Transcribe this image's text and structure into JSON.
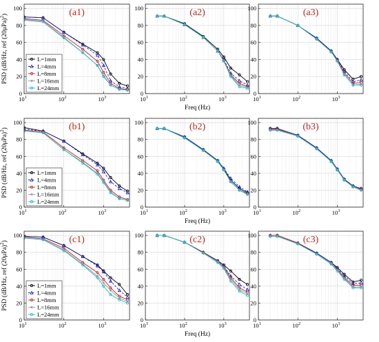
{
  "figure": {
    "ylabel_prefix": "PSD (dB/Hz, ref (20μPa)",
    "ylabel_sup": "2",
    "ylabel_suffix": ")",
    "xlabel": "Freq (Hz)"
  },
  "axes": {
    "x_scale": "log",
    "xlim": [
      10,
      4500
    ],
    "ylim": [
      0,
      105
    ],
    "x_ticks": [
      10,
      100,
      1000
    ],
    "x_tick_labels": [
      {
        "base": "10",
        "exp": "1"
      },
      {
        "base": "10",
        "exp": "2"
      },
      {
        "base": "10",
        "exp": "3"
      }
    ],
    "y_ticks": [
      0,
      20,
      40,
      60,
      80,
      100
    ],
    "y_tick_labels": [
      "0",
      "20",
      "40",
      "60",
      "80",
      "100"
    ],
    "grid": true
  },
  "legend": {
    "position": "lower-left",
    "entries": [
      "L=1mm",
      "L=4mm",
      "L=8mm",
      "L=16mm",
      "L=24mm"
    ]
  },
  "series_style": [
    {
      "color": "#000000",
      "marker": "circle"
    },
    {
      "color": "#1f1fd6",
      "marker": "triangle",
      "dash": "3,2"
    },
    {
      "color": "#c42020",
      "marker": "circle"
    },
    {
      "color": "#999999",
      "marker": "star"
    },
    {
      "color": "#1fb8c8",
      "marker": "circle"
    }
  ],
  "chart_data": [
    {
      "type": "line",
      "panel": "(a1)",
      "x": [
        10,
        30,
        100,
        300,
        700,
        1000,
        1500,
        2500,
        4000
      ],
      "series": [
        {
          "name": "L=1mm",
          "values": [
            90,
            89,
            72,
            58,
            48,
            40,
            23,
            12,
            9
          ]
        },
        {
          "name": "L=4mm",
          "values": [
            90,
            89,
            72,
            57,
            45,
            33,
            15,
            8,
            6
          ]
        },
        {
          "name": "L=8mm",
          "values": [
            88,
            86,
            68,
            52,
            38,
            25,
            12,
            6,
            5
          ]
        },
        {
          "name": "L=16mm",
          "values": [
            86,
            84,
            65,
            48,
            33,
            21,
            10,
            5,
            4
          ]
        },
        {
          "name": "L=24mm",
          "values": [
            87,
            85,
            66,
            48,
            33,
            20,
            10,
            5,
            4
          ]
        }
      ]
    },
    {
      "type": "line",
      "panel": "(a2)",
      "x": [
        20,
        30,
        100,
        300,
        700,
        1000,
        1500,
        2500,
        4000
      ],
      "series": [
        {
          "name": "L=1mm",
          "values": [
            91,
            91,
            82,
            67,
            52,
            43,
            30,
            22,
            14
          ]
        },
        {
          "name": "L=4mm",
          "values": [
            91,
            91,
            81,
            66,
            50,
            40,
            24,
            15,
            10
          ]
        },
        {
          "name": "L=8mm",
          "values": [
            91,
            91,
            81,
            66,
            50,
            39,
            22,
            12,
            8
          ]
        },
        {
          "name": "L=16mm",
          "values": [
            91,
            91,
            81,
            66,
            50,
            38,
            21,
            10,
            7
          ]
        },
        {
          "name": "L=24mm",
          "values": [
            91,
            91,
            81,
            66,
            50,
            38,
            20,
            8,
            6
          ]
        }
      ]
    },
    {
      "type": "line",
      "panel": "(a3)",
      "x": [
        20,
        30,
        100,
        300,
        700,
        1000,
        1500,
        2500,
        4000
      ],
      "series": [
        {
          "name": "L=1mm",
          "values": [
            91,
            91,
            80,
            65,
            50,
            40,
            28,
            17,
            20
          ]
        },
        {
          "name": "L=4mm",
          "values": [
            91,
            91,
            80,
            65,
            50,
            40,
            26,
            14,
            16
          ]
        },
        {
          "name": "L=8mm",
          "values": [
            91,
            91,
            80,
            64,
            49,
            39,
            24,
            12,
            13
          ]
        },
        {
          "name": "L=16mm",
          "values": [
            91,
            91,
            80,
            64,
            49,
            38,
            22,
            10,
            11
          ]
        },
        {
          "name": "L=24mm",
          "values": [
            91,
            91,
            80,
            64,
            49,
            38,
            22,
            10,
            10
          ]
        }
      ]
    },
    {
      "type": "line",
      "panel": "(b1)",
      "x": [
        10,
        30,
        100,
        300,
        700,
        1000,
        1500,
        2500,
        4000
      ],
      "series": [
        {
          "name": "L=1mm",
          "values": [
            94,
            90,
            78,
            63,
            52,
            46,
            35,
            25,
            19
          ]
        },
        {
          "name": "L=4mm",
          "values": [
            92,
            90,
            78,
            62,
            50,
            42,
            30,
            22,
            17
          ]
        },
        {
          "name": "L=8mm",
          "values": [
            91,
            89,
            70,
            55,
            43,
            32,
            20,
            12,
            9
          ]
        },
        {
          "name": "L=16mm",
          "values": [
            90,
            88,
            68,
            53,
            40,
            30,
            18,
            10,
            8
          ]
        },
        {
          "name": "L=24mm",
          "values": [
            90,
            88,
            68,
            52,
            39,
            29,
            17,
            10,
            8
          ]
        }
      ]
    },
    {
      "type": "line",
      "panel": "(b2)",
      "x": [
        20,
        30,
        100,
        300,
        700,
        1000,
        1500,
        2500,
        4000
      ],
      "series": [
        {
          "name": "L=1mm",
          "values": [
            93,
            93,
            83,
            68,
            55,
            45,
            32,
            22,
            17
          ]
        },
        {
          "name": "L=4mm",
          "values": [
            93,
            93,
            83,
            68,
            55,
            46,
            34,
            24,
            18
          ]
        },
        {
          "name": "L=8mm",
          "values": [
            93,
            93,
            82,
            67,
            54,
            44,
            30,
            20,
            16
          ]
        },
        {
          "name": "L=16mm",
          "values": [
            93,
            93,
            82,
            67,
            54,
            44,
            30,
            20,
            15
          ]
        },
        {
          "name": "L=24mm",
          "values": [
            93,
            93,
            82,
            67,
            54,
            44,
            30,
            20,
            15
          ]
        }
      ]
    },
    {
      "type": "line",
      "panel": "(b3)",
      "x": [
        20,
        30,
        100,
        300,
        700,
        1000,
        1500,
        2500,
        4000
      ],
      "series": [
        {
          "name": "L=1mm",
          "values": [
            93,
            93,
            85,
            70,
            55,
            45,
            33,
            25,
            22
          ]
        },
        {
          "name": "L=4mm",
          "values": [
            93,
            93,
            85,
            70,
            55,
            45,
            33,
            25,
            22
          ]
        },
        {
          "name": "L=8mm",
          "values": [
            92,
            92,
            84,
            69,
            54,
            44,
            32,
            24,
            21
          ]
        },
        {
          "name": "L=16mm",
          "values": [
            91,
            91,
            84,
            69,
            54,
            44,
            32,
            24,
            20
          ]
        },
        {
          "name": "L=24mm",
          "values": [
            91,
            91,
            84,
            69,
            54,
            44,
            32,
            24,
            20
          ]
        }
      ]
    },
    {
      "type": "line",
      "panel": "(c1)",
      "x": [
        10,
        30,
        100,
        300,
        700,
        1000,
        1500,
        2500,
        4000
      ],
      "series": [
        {
          "name": "L=1mm",
          "values": [
            99,
            98,
            88,
            75,
            65,
            58,
            50,
            42,
            30
          ]
        },
        {
          "name": "L=4mm",
          "values": [
            99,
            98,
            88,
            75,
            64,
            57,
            46,
            35,
            27
          ]
        },
        {
          "name": "L=8mm",
          "values": [
            98,
            96,
            85,
            68,
            56,
            48,
            38,
            28,
            24
          ]
        },
        {
          "name": "L=16mm",
          "values": [
            97,
            95,
            83,
            66,
            52,
            44,
            35,
            26,
            22
          ]
        },
        {
          "name": "L=24mm",
          "values": [
            97,
            95,
            82,
            65,
            50,
            40,
            30,
            24,
            20
          ]
        }
      ]
    },
    {
      "type": "line",
      "panel": "(c2)",
      "x": [
        20,
        30,
        100,
        300,
        700,
        1000,
        1500,
        2500,
        4000
      ],
      "series": [
        {
          "name": "L=1mm",
          "values": [
            100,
            100,
            92,
            80,
            70,
            65,
            58,
            48,
            42
          ]
        },
        {
          "name": "L=4mm",
          "values": [
            100,
            100,
            92,
            80,
            70,
            64,
            52,
            42,
            36
          ]
        },
        {
          "name": "L=8mm",
          "values": [
            100,
            100,
            92,
            80,
            69,
            63,
            50,
            38,
            33
          ]
        },
        {
          "name": "L=16mm",
          "values": [
            100,
            100,
            92,
            79,
            69,
            62,
            48,
            36,
            31
          ]
        },
        {
          "name": "L=24mm",
          "values": [
            100,
            100,
            92,
            79,
            68,
            61,
            46,
            34,
            29
          ]
        }
      ]
    },
    {
      "type": "line",
      "panel": "(c3)",
      "x": [
        20,
        30,
        100,
        300,
        700,
        1000,
        1500,
        2500,
        4000
      ],
      "series": [
        {
          "name": "L=1mm",
          "values": [
            100,
            100,
            91,
            79,
            68,
            62,
            54,
            45,
            47
          ]
        },
        {
          "name": "L=4mm",
          "values": [
            100,
            100,
            91,
            79,
            68,
            61,
            52,
            43,
            44
          ]
        },
        {
          "name": "L=8mm",
          "values": [
            100,
            100,
            91,
            78,
            67,
            60,
            50,
            41,
            41
          ]
        },
        {
          "name": "L=16mm",
          "values": [
            99,
            99,
            90,
            78,
            67,
            59,
            49,
            39,
            39
          ]
        },
        {
          "name": "L=24mm",
          "values": [
            99,
            99,
            90,
            78,
            66,
            58,
            48,
            38,
            38
          ]
        }
      ]
    }
  ]
}
